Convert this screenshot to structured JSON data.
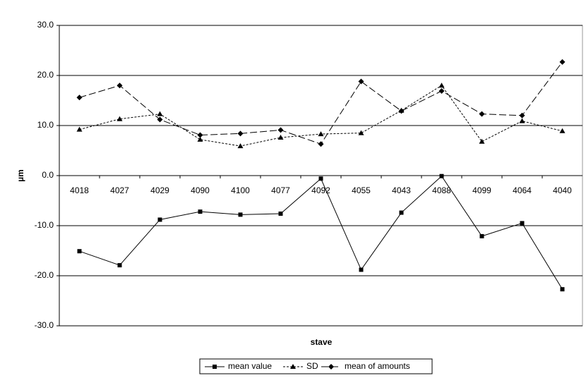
{
  "chart_data": {
    "type": "line",
    "y_label": "µm",
    "x_label": "stave",
    "categories": [
      "4018",
      "4027",
      "4029",
      "4090",
      "4100",
      "4077",
      "4092",
      "4055",
      "4043",
      "4088",
      "4099",
      "4064",
      "4040"
    ],
    "ylim": [
      -30,
      30
    ],
    "yticks": [
      {
        "value": -30,
        "label": "-30.0"
      },
      {
        "value": -20,
        "label": "-20.0"
      },
      {
        "value": -10,
        "label": "-10.0"
      },
      {
        "value": 0,
        "label": "0.0"
      },
      {
        "value": 10,
        "label": "10.0"
      },
      {
        "value": 20,
        "label": "20.0"
      },
      {
        "value": 30,
        "label": "30.0"
      }
    ],
    "grid": true,
    "legend": "bottom",
    "series": [
      {
        "name": "mean value",
        "color": "#000000",
        "marker": "square",
        "dash": "solid",
        "values": [
          -15.1,
          -17.9,
          -8.8,
          -7.2,
          -7.8,
          -7.6,
          -0.6,
          -18.8,
          -7.4,
          -0.1,
          -12.1,
          -9.5,
          -22.7
        ]
      },
      {
        "name": "SD",
        "color": "#000000",
        "marker": "triangle",
        "dash": "dotted",
        "values": [
          9.2,
          11.3,
          12.3,
          7.2,
          5.9,
          7.6,
          8.3,
          8.5,
          13.0,
          18.0,
          6.8,
          10.9,
          8.9
        ]
      },
      {
        "name": "mean of amounts",
        "color": "#000000",
        "marker": "diamond",
        "dash": "dashed",
        "values": [
          15.6,
          18.0,
          11.2,
          8.1,
          8.4,
          9.1,
          6.3,
          18.8,
          12.9,
          16.9,
          12.3,
          12.0,
          22.7
        ]
      }
    ]
  }
}
